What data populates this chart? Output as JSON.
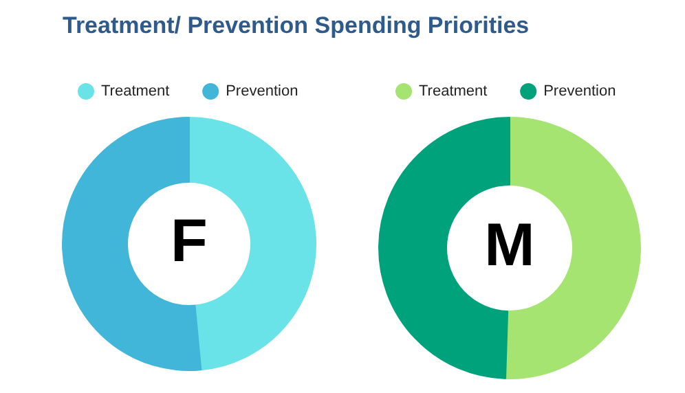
{
  "chart_data": [
    {
      "type": "donut",
      "title": "Treatment/ Prevention Spending Priorities",
      "categories": [
        "Treatment",
        "Prevention"
      ],
      "values": [
        48.5,
        51.5
      ],
      "colors": [
        "#6ae3e8",
        "#42b6d8"
      ],
      "legend": "top",
      "annotations": [
        "F"
      ]
    },
    {
      "type": "donut",
      "categories": [
        "Treatment",
        "Prevention"
      ],
      "values": [
        50.5,
        49.5
      ],
      "colors": [
        "#a6e472",
        "#00a27c"
      ],
      "legend": "top",
      "annotations": [
        "M"
      ]
    }
  ]
}
